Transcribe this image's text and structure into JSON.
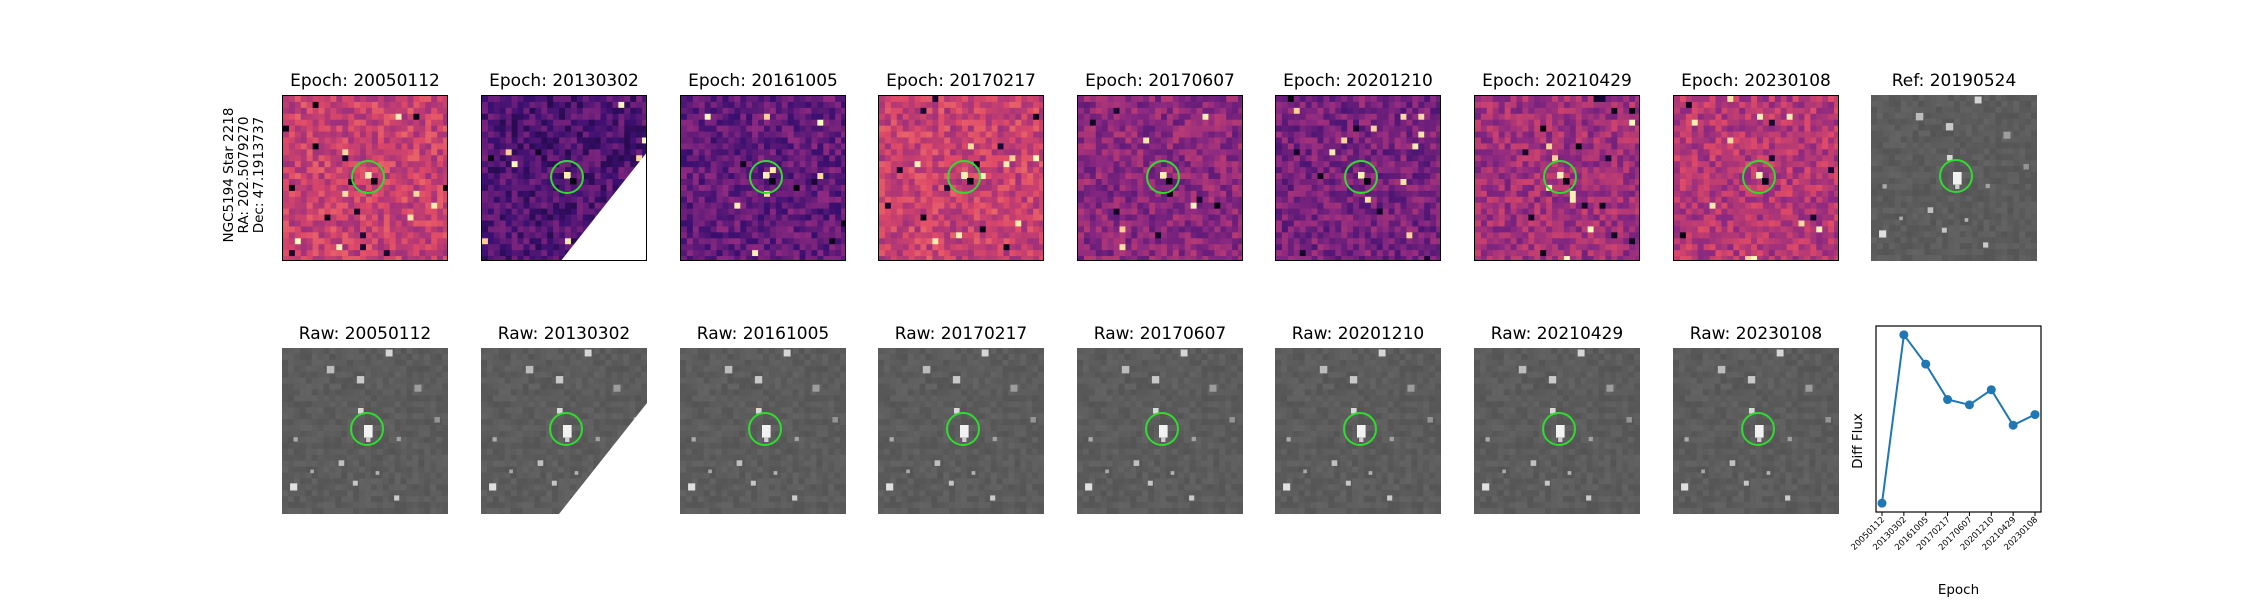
{
  "side_label": {
    "line1": "NGC5194 Star 2218",
    "line2": "RA: 202.5079270",
    "line3": "Dec: 47.1913737"
  },
  "diff_panels": [
    {
      "title": "Epoch: 20050112",
      "cmap": "magma",
      "bright": 0.55
    },
    {
      "title": "Epoch: 20130302",
      "cmap": "magma",
      "bright": 0.25,
      "mask": true
    },
    {
      "title": "Epoch: 20161005",
      "cmap": "magma",
      "bright": 0.3
    },
    {
      "title": "Epoch: 20170217",
      "cmap": "magma",
      "bright": 0.55
    },
    {
      "title": "Epoch: 20170607",
      "cmap": "magma",
      "bright": 0.4
    },
    {
      "title": "Epoch: 20201210",
      "cmap": "magma",
      "bright": 0.35
    },
    {
      "title": "Epoch: 20210429",
      "cmap": "magma",
      "bright": 0.45
    },
    {
      "title": "Epoch: 20230108",
      "cmap": "magma",
      "bright": 0.5
    }
  ],
  "ref_panel": {
    "title": "Ref: 20190524",
    "cmap": "gray"
  },
  "raw_panels": [
    {
      "title": "Raw: 20050112"
    },
    {
      "title": "Raw: 20130302",
      "mask": true
    },
    {
      "title": "Raw: 20161005"
    },
    {
      "title": "Raw: 20170217"
    },
    {
      "title": "Raw: 20170607"
    },
    {
      "title": "Raw: 20201210"
    },
    {
      "title": "Raw: 20210429"
    },
    {
      "title": "Raw: 20230108"
    }
  ],
  "colors": {
    "circle": "#2fdc2f",
    "line": "#1f77b4"
  },
  "chart_data": {
    "type": "line",
    "x": [
      "20050112",
      "20130302",
      "20161005",
      "20170217",
      "20170607",
      "20201210",
      "20210429",
      "20230108"
    ],
    "series": [
      {
        "values": [
          -0.95,
          0.95,
          0.62,
          0.22,
          0.16,
          0.33,
          -0.07,
          0.05
        ]
      }
    ],
    "xlabel": "Epoch",
    "ylabel": "Diff Flux",
    "ylim": [
      -1.05,
      1.05
    ],
    "yticks": false,
    "grid": false
  }
}
